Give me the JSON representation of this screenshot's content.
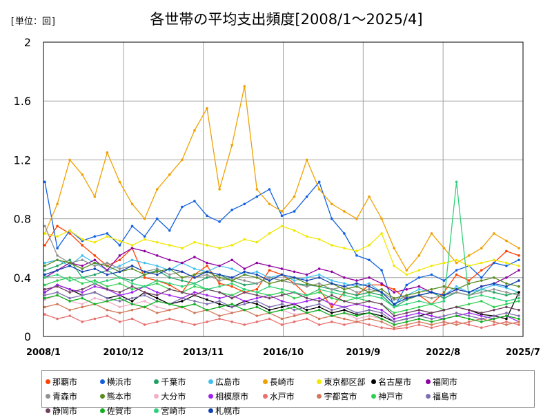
{
  "unit_label": "[単位：回]",
  "chart_data": {
    "type": "line",
    "title": "各世帯の平均支出頻度[2008/1～2025/4]",
    "xlabel": "",
    "ylabel": "",
    "ylim": [
      0,
      2
    ],
    "yticks": [
      "0",
      "0.4",
      "0.8",
      "1.2",
      "1.6",
      "2"
    ],
    "xrange": [
      "2008/1",
      "2025/7"
    ],
    "xticks": [
      "2008/1",
      "2010/12",
      "2013/11",
      "2016/10",
      "2019/9",
      "2022/8",
      "2025/7"
    ],
    "grid": true,
    "legend_position": "bottom",
    "series": [
      {
        "name": "那覇市",
        "color": "#ff4000",
        "values": [
          0.62,
          0.75,
          0.7,
          0.62,
          0.55,
          0.48,
          0.52,
          0.6,
          0.4,
          0.38,
          0.35,
          0.3,
          0.42,
          0.48,
          0.36,
          0.34,
          0.3,
          0.32,
          0.45,
          0.42,
          0.36,
          0.28,
          0.32,
          0.2,
          0.3,
          0.28,
          0.35,
          0.35,
          0.32,
          0.25,
          0.28,
          0.22,
          0.3,
          0.42,
          0.38,
          0.45,
          0.5,
          0.58,
          0.55
        ]
      },
      {
        "name": "横浜市",
        "color": "#1060e0",
        "values": [
          1.05,
          0.6,
          0.72,
          0.65,
          0.68,
          0.7,
          0.62,
          0.75,
          0.68,
          0.8,
          0.72,
          0.88,
          0.92,
          0.82,
          0.78,
          0.86,
          0.9,
          0.95,
          1.0,
          0.82,
          0.85,
          0.95,
          1.05,
          0.8,
          0.7,
          0.55,
          0.52,
          0.45,
          0.2,
          0.35,
          0.4,
          0.42,
          0.38,
          0.45,
          0.48,
          0.4,
          0.5,
          0.48,
          0.52
        ]
      },
      {
        "name": "千葉市",
        "color": "#20a060",
        "values": [
          0.45,
          0.48,
          0.52,
          0.4,
          0.42,
          0.45,
          0.4,
          0.38,
          0.42,
          0.45,
          0.4,
          0.38,
          0.36,
          0.4,
          0.42,
          0.38,
          0.35,
          0.36,
          0.4,
          0.38,
          0.36,
          0.35,
          0.34,
          0.32,
          0.3,
          0.28,
          0.3,
          0.28,
          0.2,
          0.25,
          0.28,
          0.3,
          0.26,
          0.3,
          0.28,
          0.32,
          0.3,
          0.28,
          0.3
        ]
      },
      {
        "name": "広島市",
        "color": "#40c0f0",
        "values": [
          0.5,
          0.52,
          0.48,
          0.55,
          0.5,
          0.45,
          0.48,
          0.52,
          0.5,
          0.48,
          0.45,
          0.5,
          0.46,
          0.44,
          0.48,
          0.46,
          0.42,
          0.44,
          0.4,
          0.42,
          0.38,
          0.4,
          0.42,
          0.38,
          0.36,
          0.34,
          0.36,
          0.3,
          0.22,
          0.28,
          0.32,
          0.3,
          0.28,
          0.34,
          0.3,
          0.32,
          0.35,
          0.33,
          0.3
        ]
      },
      {
        "name": "長崎市",
        "color": "#f0a000",
        "values": [
          0.7,
          0.9,
          1.2,
          1.1,
          0.95,
          1.25,
          1.05,
          0.9,
          0.8,
          1.0,
          1.1,
          1.2,
          1.4,
          1.55,
          1.0,
          1.3,
          1.7,
          1.0,
          0.9,
          0.85,
          0.95,
          1.2,
          1.0,
          0.9,
          0.85,
          0.8,
          0.95,
          0.8,
          0.6,
          0.45,
          0.55,
          0.7,
          0.6,
          0.5,
          0.55,
          0.6,
          0.7,
          0.65,
          0.6
        ]
      },
      {
        "name": "東京都区部",
        "color": "#f0e800",
        "values": [
          0.7,
          0.68,
          0.72,
          0.66,
          0.64,
          0.68,
          0.65,
          0.62,
          0.66,
          0.64,
          0.62,
          0.6,
          0.64,
          0.62,
          0.6,
          0.62,
          0.66,
          0.64,
          0.7,
          0.75,
          0.72,
          0.68,
          0.66,
          0.62,
          0.6,
          0.58,
          0.62,
          0.7,
          0.48,
          0.42,
          0.45,
          0.48,
          0.5,
          0.52,
          0.48,
          0.5,
          0.52,
          0.5,
          0.48
        ]
      },
      {
        "name": "名古屋市",
        "color": "#000000",
        "values": [
          0.3,
          0.35,
          0.32,
          0.28,
          0.3,
          0.26,
          0.28,
          0.24,
          0.3,
          0.26,
          0.22,
          0.24,
          0.28,
          0.25,
          0.22,
          0.2,
          0.24,
          0.22,
          0.18,
          0.2,
          0.22,
          0.18,
          0.2,
          0.16,
          0.18,
          0.15,
          0.16,
          0.14,
          0.1,
          0.12,
          0.14,
          0.16,
          0.18,
          0.2,
          0.18,
          0.15,
          0.14,
          0.12,
          0.3
        ]
      },
      {
        "name": "福岡市",
        "color": "#9000a0",
        "values": [
          0.4,
          0.45,
          0.5,
          0.48,
          0.52,
          0.45,
          0.55,
          0.6,
          0.58,
          0.55,
          0.52,
          0.5,
          0.54,
          0.5,
          0.48,
          0.52,
          0.46,
          0.5,
          0.48,
          0.46,
          0.44,
          0.42,
          0.46,
          0.44,
          0.4,
          0.38,
          0.4,
          0.36,
          0.3,
          0.32,
          0.34,
          0.3,
          0.28,
          0.32,
          0.3,
          0.34,
          0.36,
          0.4,
          0.45
        ]
      },
      {
        "name": "青森市",
        "color": "#909090",
        "values": [
          0.75,
          0.55,
          0.5,
          0.52,
          0.48,
          0.5,
          0.46,
          0.48,
          0.44,
          0.46,
          0.42,
          0.44,
          0.4,
          0.42,
          0.38,
          0.4,
          0.38,
          0.36,
          0.4,
          0.38,
          0.36,
          0.34,
          0.36,
          0.32,
          0.34,
          0.3,
          0.32,
          0.3,
          0.25,
          0.27,
          0.28,
          0.26,
          0.28,
          0.3,
          0.28,
          0.3,
          0.32,
          0.3,
          0.28
        ]
      },
      {
        "name": "熊本市",
        "color": "#5a8a20",
        "values": [
          0.48,
          0.52,
          0.5,
          0.46,
          0.5,
          0.48,
          0.44,
          0.46,
          0.42,
          0.44,
          0.46,
          0.4,
          0.42,
          0.44,
          0.4,
          0.38,
          0.42,
          0.4,
          0.36,
          0.38,
          0.4,
          0.36,
          0.34,
          0.36,
          0.32,
          0.34,
          0.3,
          0.32,
          0.26,
          0.28,
          0.3,
          0.32,
          0.34,
          0.32,
          0.36,
          0.38,
          0.4,
          0.36,
          0.34
        ]
      },
      {
        "name": "大分市",
        "color": "#f0b0c8",
        "values": [
          0.25,
          0.28,
          0.24,
          0.22,
          0.26,
          0.24,
          0.2,
          0.22,
          0.24,
          0.2,
          0.18,
          0.2,
          0.22,
          0.18,
          0.2,
          0.16,
          0.18,
          0.2,
          0.16,
          0.18,
          0.15,
          0.16,
          0.18,
          0.14,
          0.16,
          0.12,
          0.14,
          0.12,
          0.08,
          0.1,
          0.12,
          0.1,
          0.12,
          0.14,
          0.12,
          0.1,
          0.12,
          0.14,
          0.12
        ]
      },
      {
        "name": "相模原市",
        "color": "#a020f0",
        "values": [
          0.3,
          0.35,
          0.32,
          0.3,
          0.34,
          0.32,
          0.28,
          0.3,
          0.34,
          0.3,
          0.28,
          0.26,
          0.3,
          0.28,
          0.26,
          0.28,
          0.24,
          0.26,
          0.28,
          0.24,
          0.22,
          0.24,
          0.26,
          0.22,
          0.2,
          0.22,
          0.2,
          0.18,
          0.12,
          0.14,
          0.16,
          0.14,
          0.12,
          0.14,
          0.16,
          0.14,
          0.12,
          0.14,
          0.1
        ]
      },
      {
        "name": "水戸市",
        "color": "#e87070",
        "values": [
          0.15,
          0.12,
          0.14,
          0.1,
          0.12,
          0.14,
          0.1,
          0.12,
          0.08,
          0.1,
          0.12,
          0.1,
          0.08,
          0.1,
          0.12,
          0.1,
          0.08,
          0.1,
          0.12,
          0.08,
          0.1,
          0.12,
          0.08,
          0.1,
          0.08,
          0.1,
          0.08,
          0.06,
          0.05,
          0.06,
          0.08,
          0.06,
          0.08,
          0.1,
          0.08,
          0.06,
          0.08,
          0.1,
          0.08
        ]
      },
      {
        "name": "宇都宮市",
        "color": "#d07858",
        "values": [
          0.2,
          0.22,
          0.18,
          0.2,
          0.22,
          0.18,
          0.16,
          0.18,
          0.2,
          0.16,
          0.18,
          0.2,
          0.16,
          0.18,
          0.14,
          0.16,
          0.18,
          0.14,
          0.16,
          0.12,
          0.14,
          0.16,
          0.12,
          0.14,
          0.12,
          0.1,
          0.12,
          0.1,
          0.06,
          0.08,
          0.1,
          0.08,
          0.1,
          0.08,
          0.1,
          0.12,
          0.1,
          0.08,
          0.1
        ]
      },
      {
        "name": "神戸市",
        "color": "#30d050",
        "values": [
          0.35,
          0.38,
          0.4,
          0.36,
          0.38,
          0.34,
          0.36,
          0.32,
          0.34,
          0.36,
          0.32,
          0.3,
          0.34,
          0.32,
          0.3,
          0.28,
          0.32,
          0.3,
          0.28,
          0.3,
          0.26,
          0.28,
          0.3,
          0.26,
          0.24,
          0.26,
          0.24,
          0.22,
          0.16,
          0.18,
          0.2,
          0.22,
          0.18,
          0.2,
          0.22,
          0.24,
          0.2,
          0.22,
          0.24
        ]
      },
      {
        "name": "福島市",
        "color": "#8070b0",
        "values": [
          0.28,
          0.3,
          0.26,
          0.28,
          0.3,
          0.26,
          0.24,
          0.26,
          0.28,
          0.24,
          0.22,
          0.26,
          0.24,
          0.22,
          0.24,
          0.2,
          0.22,
          0.24,
          0.2,
          0.22,
          0.18,
          0.2,
          0.22,
          0.18,
          0.2,
          0.16,
          0.18,
          0.16,
          0.1,
          0.12,
          0.14,
          0.12,
          0.14,
          0.16,
          0.14,
          0.12,
          0.14,
          0.16,
          0.14
        ]
      },
      {
        "name": "静岡市",
        "color": "#704060",
        "values": [
          0.32,
          0.34,
          0.3,
          0.32,
          0.36,
          0.32,
          0.3,
          0.34,
          0.3,
          0.28,
          0.32,
          0.3,
          0.28,
          0.32,
          0.3,
          0.26,
          0.3,
          0.28,
          0.26,
          0.28,
          0.3,
          0.26,
          0.24,
          0.28,
          0.24,
          0.22,
          0.24,
          0.22,
          0.14,
          0.16,
          0.18,
          0.16,
          0.18,
          0.2,
          0.18,
          0.16,
          0.18,
          0.2,
          0.18
        ]
      },
      {
        "name": "佐賀市",
        "color": "#10b020",
        "values": [
          0.26,
          0.28,
          0.24,
          0.26,
          0.22,
          0.24,
          0.26,
          0.22,
          0.2,
          0.24,
          0.22,
          0.2,
          0.22,
          0.18,
          0.2,
          0.22,
          0.18,
          0.2,
          0.16,
          0.18,
          0.2,
          0.16,
          0.18,
          0.14,
          0.16,
          0.14,
          0.16,
          0.12,
          0.08,
          0.1,
          0.12,
          0.1,
          0.12,
          0.14,
          0.12,
          0.1,
          0.12,
          0.14,
          0.12
        ]
      },
      {
        "name": "宮崎市",
        "color": "#30d078",
        "values": [
          0.4,
          0.42,
          0.38,
          0.4,
          0.36,
          0.38,
          0.4,
          0.36,
          0.34,
          0.38,
          0.36,
          0.34,
          0.36,
          0.32,
          0.34,
          0.36,
          0.32,
          0.3,
          0.34,
          0.32,
          0.3,
          0.28,
          0.32,
          0.3,
          0.28,
          0.26,
          0.28,
          0.26,
          0.2,
          0.22,
          0.24,
          0.22,
          0.24,
          1.05,
          0.26,
          0.28,
          0.26,
          0.24,
          0.26
        ]
      },
      {
        "name": "札幌市",
        "color": "#1040b0",
        "values": [
          0.42,
          0.45,
          0.48,
          0.44,
          0.46,
          0.42,
          0.44,
          0.48,
          0.44,
          0.42,
          0.46,
          0.44,
          0.4,
          0.44,
          0.42,
          0.4,
          0.44,
          0.42,
          0.38,
          0.42,
          0.4,
          0.38,
          0.4,
          0.36,
          0.34,
          0.36,
          0.34,
          0.3,
          0.22,
          0.26,
          0.28,
          0.3,
          0.28,
          0.32,
          0.3,
          0.34,
          0.36,
          0.34,
          0.38
        ]
      }
    ]
  }
}
